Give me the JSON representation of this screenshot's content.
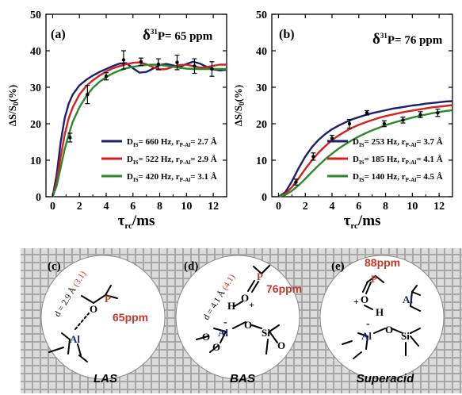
{
  "colors": {
    "navy": "#1b1f6e",
    "red": "#d42020",
    "green": "#2a8a2a",
    "ppm_red": "#c0392b",
    "al_navy": "#1b1f6e",
    "grid_bg": "#c8c8c8"
  },
  "chart_data": [
    {
      "type": "line",
      "panel": "(a)",
      "annotation": "δ³¹P= 65 ppm",
      "annotation_prefix": "δ",
      "annotation_sup": "31",
      "annotation_suffix": "P= 65 ppm",
      "xlabel": "τrc/ms",
      "xlabel_main": "τ",
      "xlabel_sub": "rc",
      "xlabel_tail": "/ms",
      "ylabel": "ΔS/S0(%)",
      "xlim": [
        -0.5,
        13
      ],
      "ylim": [
        0,
        50
      ],
      "xticks": [
        "0",
        "2",
        "4",
        "6",
        "8",
        "10",
        "12"
      ],
      "yticks": [
        "0",
        "10",
        "20",
        "30",
        "40",
        "50"
      ],
      "legend_position": "bottom-right",
      "series": [
        {
          "name": "DIS= 660 Hz, rP-Al= 2.7 Å",
          "label_parts": [
            "D",
            "IS",
            "= 660 Hz, r",
            "P-Al",
            "= 2.7 Å"
          ],
          "color_key": "navy",
          "x": [
            0,
            0.3,
            0.6,
            0.9,
            1.2,
            1.5,
            2,
            2.5,
            3,
            3.5,
            4,
            4.5,
            5,
            5.5,
            6,
            6.5,
            7,
            7.5,
            8,
            8.5,
            9,
            9.5,
            10,
            10.5,
            11,
            11.5,
            12,
            12.5,
            13
          ],
          "y": [
            0,
            6,
            15,
            21.5,
            25.5,
            28,
            30.5,
            32,
            33.2,
            34.2,
            35,
            35.8,
            36.5,
            36.6,
            35.2,
            34.0,
            34.2,
            35.1,
            36.1,
            36.4,
            36.0,
            35.5,
            36.4,
            37.0,
            36.5,
            35.6,
            34.9,
            34.6,
            34.8
          ]
        },
        {
          "name": "DIS= 522 Hz, rP-Al= 2.9 Å",
          "label_parts": [
            "D",
            "IS",
            "= 522 Hz, r",
            "P-Al",
            "= 2.9 Å"
          ],
          "color_key": "red",
          "x": [
            0,
            0.3,
            0.6,
            0.9,
            1.2,
            1.5,
            2,
            2.5,
            3,
            3.5,
            4,
            4.5,
            5,
            5.5,
            6,
            6.5,
            7,
            7.5,
            8,
            8.5,
            9,
            9.5,
            10,
            10.5,
            11,
            11.5,
            12,
            12.5,
            13
          ],
          "y": [
            0,
            4,
            11,
            17,
            21.5,
            24.5,
            28,
            30.3,
            31.9,
            33.2,
            34.3,
            35.2,
            35.8,
            36.3,
            36.7,
            36.8,
            36.3,
            35.5,
            34.9,
            35.0,
            35.6,
            36.1,
            36.2,
            35.8,
            35.4,
            35.5,
            35.9,
            36.2,
            36.2
          ]
        },
        {
          "name": "DIS= 420 Hz, rP-Al= 3.1 Å",
          "label_parts": [
            "D",
            "IS",
            "= 420 Hz, r",
            "P-Al",
            "= 3.1 Å"
          ],
          "color_key": "green",
          "x": [
            0,
            0.3,
            0.6,
            0.9,
            1.2,
            1.5,
            2,
            2.5,
            3,
            3.5,
            4,
            4.5,
            5,
            5.5,
            6,
            6.5,
            7,
            7.5,
            8,
            8.5,
            9,
            9.5,
            10,
            10.5,
            11,
            11.5,
            12,
            12.5,
            13
          ],
          "y": [
            0,
            3,
            8,
            13,
            17,
            20.5,
            24.5,
            27.5,
            29.8,
            31.5,
            32.8,
            33.8,
            34.6,
            35.2,
            35.6,
            35.9,
            36.1,
            36.2,
            36.1,
            35.9,
            35.6,
            35.3,
            35.1,
            35.0,
            35.0,
            35.0,
            35.0,
            35.0,
            35.0
          ]
        }
      ],
      "points": {
        "x": [
          1.3,
          2.6,
          4.0,
          5.3,
          6.6,
          7.9,
          9.3,
          10.6,
          11.9
        ],
        "y": [
          16.2,
          28.0,
          33.0,
          37.5,
          37.0,
          36.3,
          36.8,
          35.8,
          35.0
        ],
        "err": [
          1.2,
          2.5,
          1.0,
          2.5,
          1.0,
          1.5,
          2.0,
          2.0,
          2.0
        ]
      }
    },
    {
      "type": "line",
      "panel": "(b)",
      "annotation": "δ³¹P= 76 ppm",
      "annotation_prefix": "δ",
      "annotation_sup": "31",
      "annotation_suffix": "P= 76 ppm",
      "xlabel": "τrc/ms",
      "xlabel_main": "τ",
      "xlabel_sub": "rc",
      "xlabel_tail": "/ms",
      "ylabel": "ΔS/S0(%)",
      "xlim": [
        -0.5,
        13
      ],
      "ylim": [
        0,
        50
      ],
      "xticks": [
        "0",
        "2",
        "4",
        "6",
        "8",
        "10",
        "12"
      ],
      "yticks": [
        "0",
        "10",
        "20",
        "30",
        "40",
        "50"
      ],
      "legend_position": "bottom-right",
      "series": [
        {
          "name": "DIS= 253 Hz, rP-Al= 3.7 Å",
          "label_parts": [
            "D",
            "IS",
            "= 253 Hz, r",
            "P-Al",
            "= 3.7 Å"
          ],
          "color_key": "navy",
          "x": [
            0,
            0.5,
            1,
            1.5,
            2,
            2.5,
            3,
            3.5,
            4,
            4.5,
            5,
            5.5,
            6,
            6.5,
            7,
            7.5,
            8,
            8.5,
            9,
            9.5,
            10,
            10.5,
            11,
            11.5,
            12,
            12.5,
            13
          ],
          "y": [
            0,
            1.2,
            4.2,
            7.8,
            11,
            13.6,
            15.6,
            17.2,
            18.5,
            19.5,
            20.4,
            21.2,
            21.8,
            22.4,
            22.9,
            23.3,
            23.7,
            24.1,
            24.4,
            24.7,
            25,
            25.2,
            25.5,
            25.7,
            25.9,
            26.1,
            26.2
          ]
        },
        {
          "name": "DIS= 185 Hz, rP-Al= 4.1 Å",
          "label_parts": [
            "D",
            "IS",
            "= 185 Hz, r",
            "P-Al",
            "= 4.1 Å"
          ],
          "color_key": "red",
          "x": [
            0,
            0.5,
            1,
            1.5,
            2,
            2.5,
            3,
            3.5,
            4,
            4.5,
            5,
            5.5,
            6,
            6.5,
            7,
            7.5,
            8,
            8.5,
            9,
            9.5,
            10,
            10.5,
            11,
            11.5,
            12,
            12.5,
            13
          ],
          "y": [
            0,
            0.8,
            2.6,
            5.0,
            7.6,
            10,
            12.1,
            13.9,
            15.5,
            16.8,
            17.9,
            18.9,
            19.7,
            20.4,
            21.0,
            21.6,
            22.1,
            22.5,
            22.9,
            23.3,
            23.6,
            23.9,
            24.2,
            24.5,
            24.7,
            24.9,
            25.1
          ]
        },
        {
          "name": "DIS= 140 Hz, rP-Al= 4.5 Å",
          "label_parts": [
            "D",
            "IS",
            "= 140 Hz, r",
            "P-Al",
            "= 4.5 Å"
          ],
          "color_key": "green",
          "x": [
            0,
            0.5,
            1,
            1.5,
            2,
            2.5,
            3,
            3.5,
            4,
            4.5,
            5,
            5.5,
            6,
            6.5,
            7,
            7.5,
            8,
            8.5,
            9,
            9.5,
            10,
            10.5,
            11,
            11.5,
            12,
            12.5,
            13
          ],
          "y": [
            0,
            0.5,
            1.6,
            3.1,
            4.9,
            6.8,
            8.6,
            10.3,
            11.8,
            13.2,
            14.4,
            15.5,
            16.5,
            17.4,
            18.2,
            18.9,
            19.6,
            20.2,
            20.7,
            21.2,
            21.7,
            22.1,
            22.5,
            22.9,
            23.2,
            23.5,
            23.7
          ]
        }
      ],
      "points": {
        "x": [
          1.3,
          2.6,
          4.0,
          5.3,
          6.6,
          7.9,
          9.3,
          10.6,
          11.9
        ],
        "y": [
          4.0,
          11.0,
          16.0,
          20.0,
          23.0,
          20.0,
          21.0,
          22.5,
          23.0
        ],
        "err": [
          0.8,
          1.0,
          0.8,
          1.2,
          0.6,
          0.8,
          0.8,
          0.8,
          1.0
        ]
      }
    }
  ],
  "scheme": {
    "panels": [
      {
        "letter": "(c)",
        "caption": "LAS",
        "distance_label": "d = 2.9 Å (3.1)",
        "distance_main": "d = 2.9 Å ",
        "distance_paren": "(3.1)",
        "ppm": "65ppm",
        "atoms": {
          "P": "P",
          "O": "O",
          "Al": "Al"
        }
      },
      {
        "letter": "(d)",
        "caption": "BAS",
        "distance_label": "d = 4.1 Å (4.1)",
        "distance_main": "d = 4.1 Å ",
        "distance_paren": "(4.1)",
        "ppm": "76ppm",
        "atoms": {
          "P": "P",
          "O": "O",
          "H": "H",
          "plus": "+",
          "Al": "Al",
          "Si": "Si",
          "minus": "-"
        }
      },
      {
        "letter": "(e)",
        "caption": "Superacid",
        "ppm": "88ppm",
        "atoms": {
          "P": "P",
          "O": "O",
          "H": "H",
          "plus": "+",
          "Al": "Al",
          "Si": "Si",
          "minus": "-"
        }
      }
    ]
  }
}
